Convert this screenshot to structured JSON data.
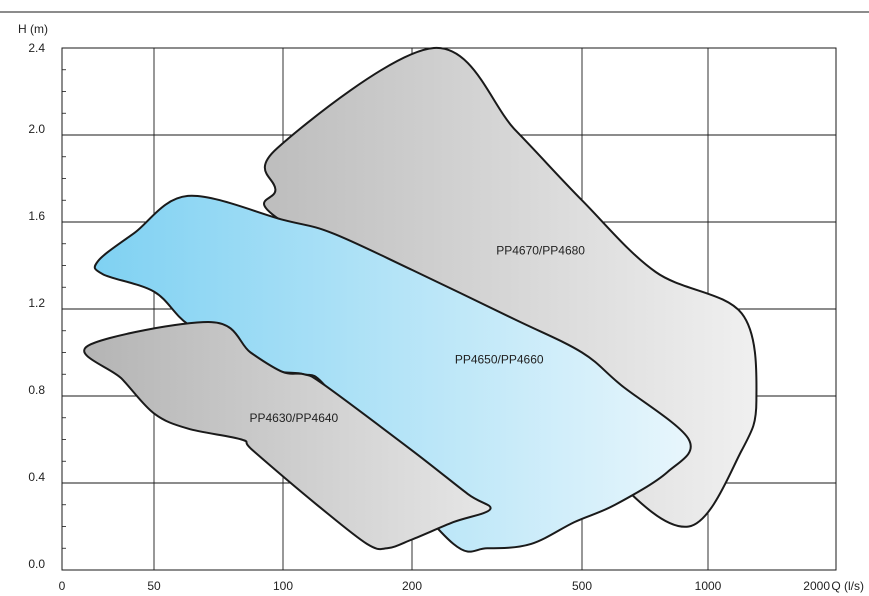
{
  "chart_data": {
    "type": "area",
    "title": "",
    "ylabel": "H (m)",
    "xlabel": "Q (l/s)",
    "x_scale": "log",
    "grid": true,
    "x_ticks": [
      {
        "value": 0,
        "label": "0"
      },
      {
        "value": 50,
        "label": "50"
      },
      {
        "value": 100,
        "label": "100"
      },
      {
        "value": 200,
        "label": "200"
      },
      {
        "value": 500,
        "label": "500"
      },
      {
        "value": 1000,
        "label": "1000"
      },
      {
        "value": 2000,
        "label": "2000"
      }
    ],
    "y_ticks": [
      {
        "value": 0.0,
        "label": "0.0"
      },
      {
        "value": 0.4,
        "label": "0.4"
      },
      {
        "value": 0.8,
        "label": "0.8"
      },
      {
        "value": 1.2,
        "label": "1.2"
      },
      {
        "value": 1.6,
        "label": "1.6"
      },
      {
        "value": 2.0,
        "label": "2.0"
      },
      {
        "value": 2.4,
        "label": "2.4"
      }
    ],
    "ylim": [
      0,
      2.4
    ],
    "xlim": [
      0,
      2000
    ],
    "regions": [
      {
        "label": "PP4670/PP4680",
        "label_at": {
          "x": 400,
          "y": 1.45
        },
        "style": {
          "fill_from": "#bdbdbd",
          "fill_to": "#f0f0f0",
          "stroke": "#1a1a1a"
        },
        "boundary": [
          [
            97,
            1.94
          ],
          [
            225,
            2.4
          ],
          [
            350,
            2.02
          ],
          [
            500,
            1.7
          ],
          [
            750,
            1.37
          ],
          [
            1200,
            1.18
          ],
          [
            1300,
            0.78
          ],
          [
            1200,
            0.55
          ],
          [
            900,
            0.2
          ],
          [
            580,
            0.45
          ],
          [
            330,
            1.05
          ],
          [
            100,
            1.6
          ],
          [
            96,
            1.75
          ],
          [
            97,
            1.94
          ]
        ]
      },
      {
        "label": "PP4650/PP4660",
        "label_at": {
          "x": 320,
          "y": 0.95
        },
        "style": {
          "fill_from": "#7fd1f2",
          "fill_to": "#e8f6fc",
          "stroke": "#1a1a1a"
        },
        "boundary": [
          [
            60,
            1.72
          ],
          [
            100,
            1.61
          ],
          [
            130,
            1.55
          ],
          [
            200,
            1.38
          ],
          [
            350,
            1.15
          ],
          [
            500,
            1.0
          ],
          [
            620,
            0.85
          ],
          [
            900,
            0.6
          ],
          [
            800,
            0.45
          ],
          [
            600,
            0.3
          ],
          [
            480,
            0.22
          ],
          [
            380,
            0.12
          ],
          [
            300,
            0.1
          ],
          [
            250,
            0.12
          ],
          [
            170,
            0.5
          ],
          [
            125,
            0.85
          ],
          [
            112,
            0.9
          ],
          [
            100,
            0.91
          ],
          [
            95,
            0.93
          ],
          [
            80,
            1.0
          ],
          [
            60,
            1.13
          ],
          [
            50,
            1.28
          ],
          [
            38,
            1.36
          ],
          [
            37,
            1.42
          ],
          [
            45,
            1.55
          ],
          [
            60,
            1.72
          ]
        ]
      },
      {
        "label": "PP4630/PP4640",
        "label_at": {
          "x": 106,
          "y": 0.68
        },
        "style": {
          "fill_from": "#b4b4b4",
          "fill_to": "#e6e6e6",
          "stroke": "#1a1a1a"
        },
        "boundary": [
          [
            35,
            1.03
          ],
          [
            68,
            1.14
          ],
          [
            84,
            1.0
          ],
          [
            100,
            0.91
          ],
          [
            112,
            0.9
          ],
          [
            125,
            0.85
          ],
          [
            200,
            0.55
          ],
          [
            270,
            0.35
          ],
          [
            305,
            0.28
          ],
          [
            250,
            0.22
          ],
          [
            200,
            0.14
          ],
          [
            175,
            0.1
          ],
          [
            157,
            0.12
          ],
          [
            120,
            0.3
          ],
          [
            85,
            0.55
          ],
          [
            80,
            0.6
          ],
          [
            60,
            0.65
          ],
          [
            50,
            0.72
          ],
          [
            42,
            0.88
          ],
          [
            35,
            1.03
          ]
        ]
      }
    ]
  }
}
